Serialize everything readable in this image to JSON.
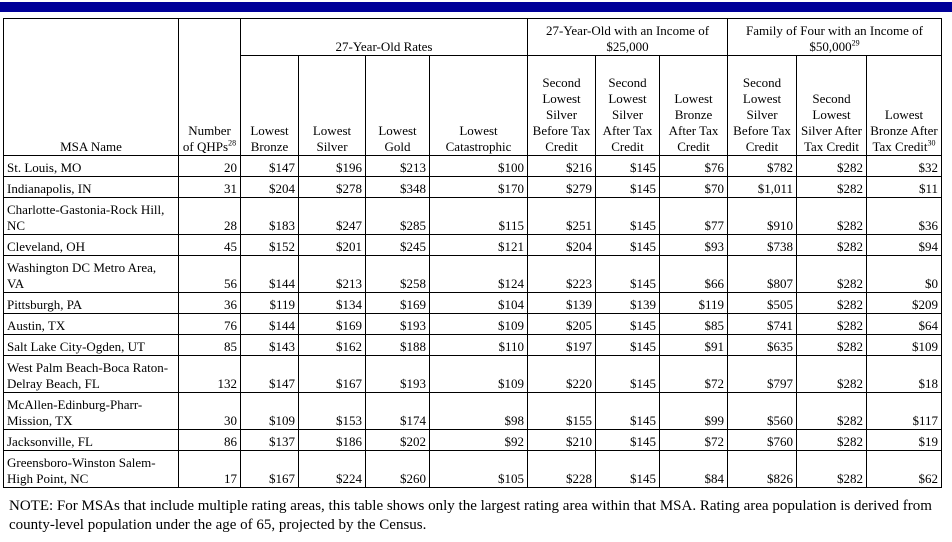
{
  "table": {
    "groups": [
      {
        "label": "27-Year-Old Rates"
      },
      {
        "label": "27-Year-Old with an Income of $25,000"
      },
      {
        "label": "Family of Four with an Income of $50,000",
        "note": "29"
      }
    ],
    "columns": [
      {
        "label": "MSA Name"
      },
      {
        "label": "Number of QHPs",
        "note": "28"
      },
      {
        "label": "Lowest Bronze"
      },
      {
        "label": "Lowest Silver"
      },
      {
        "label": "Lowest Gold"
      },
      {
        "label": "Lowest Catastrophic"
      },
      {
        "label": "Second Lowest Silver Before Tax Credit"
      },
      {
        "label": "Second Lowest Silver After Tax Credit"
      },
      {
        "label": "Lowest Bronze After Tax Credit"
      },
      {
        "label": "Second Lowest Silver Before Tax Credit"
      },
      {
        "label": "Second Lowest Silver After Tax Credit"
      },
      {
        "label": "Lowest Bronze After Tax Credit",
        "note": "30"
      }
    ],
    "rows": [
      [
        "St. Louis, MO",
        "20",
        "$147",
        "$196",
        "$213",
        "$100",
        "$216",
        "$145",
        "$76",
        "$782",
        "$282",
        "$32"
      ],
      [
        "Indianapolis, IN",
        "31",
        "$204",
        "$278",
        "$348",
        "$170",
        "$279",
        "$145",
        "$70",
        "$1,011",
        "$282",
        "$11"
      ],
      [
        "Charlotte-Gastonia-Rock Hill, NC",
        "28",
        "$183",
        "$247",
        "$285",
        "$115",
        "$251",
        "$145",
        "$77",
        "$910",
        "$282",
        "$36"
      ],
      [
        "Cleveland, OH",
        "45",
        "$152",
        "$201",
        "$245",
        "$121",
        "$204",
        "$145",
        "$93",
        "$738",
        "$282",
        "$94"
      ],
      [
        "Washington DC Metro Area, VA",
        "56",
        "$144",
        "$213",
        "$258",
        "$124",
        "$223",
        "$145",
        "$66",
        "$807",
        "$282",
        "$0"
      ],
      [
        "Pittsburgh, PA",
        "36",
        "$119",
        "$134",
        "$169",
        "$104",
        "$139",
        "$139",
        "$119",
        "$505",
        "$282",
        "$209"
      ],
      [
        "Austin, TX",
        "76",
        "$144",
        "$169",
        "$193",
        "$109",
        "$205",
        "$145",
        "$85",
        "$741",
        "$282",
        "$64"
      ],
      [
        "Salt Lake City-Ogden, UT",
        "85",
        "$143",
        "$162",
        "$188",
        "$110",
        "$197",
        "$145",
        "$91",
        "$635",
        "$282",
        "$109"
      ],
      [
        "West Palm Beach-Boca Raton-Delray Beach, FL",
        "132",
        "$147",
        "$167",
        "$193",
        "$109",
        "$220",
        "$145",
        "$72",
        "$797",
        "$282",
        "$18"
      ],
      [
        "McAllen-Edinburg-Pharr-Mission, TX",
        "30",
        "$109",
        "$153",
        "$174",
        "$98",
        "$155",
        "$145",
        "$99",
        "$560",
        "$282",
        "$117"
      ],
      [
        "Jacksonville, FL",
        "86",
        "$137",
        "$186",
        "$202",
        "$92",
        "$210",
        "$145",
        "$72",
        "$760",
        "$282",
        "$19"
      ],
      [
        "Greensboro-Winston Salem-High Point, NC",
        "17",
        "$167",
        "$224",
        "$260",
        "$105",
        "$228",
        "$145",
        "$84",
        "$826",
        "$282",
        "$62"
      ]
    ]
  },
  "note": "NOTE: For MSAs that include multiple rating areas, this table shows only the largest rating area within that MSA. Rating area population is derived from county-level population under the age of 65, projected by the Census."
}
